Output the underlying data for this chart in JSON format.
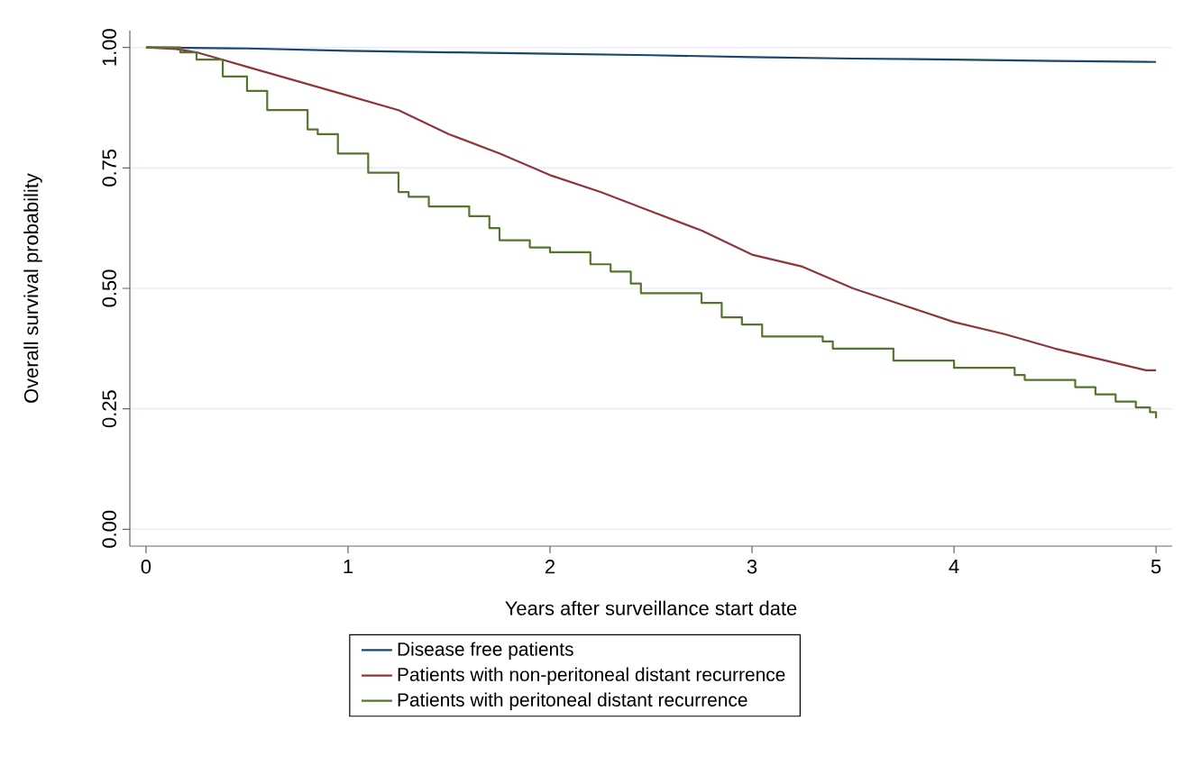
{
  "chart_data": {
    "type": "line",
    "xlabel": "Years after surveillance start date",
    "ylabel": "Overall survival probability",
    "xlim": [
      -0.08,
      5.08
    ],
    "ylim": [
      -0.035,
      1.035
    ],
    "xticks": [
      0,
      1,
      2,
      3,
      4,
      5
    ],
    "yticks": [
      {
        "value": 0,
        "label": "0.00"
      },
      {
        "value": 0.25,
        "label": "0.25"
      },
      {
        "value": 0.5,
        "label": "0.50"
      },
      {
        "value": 0.75,
        "label": "0.75"
      },
      {
        "value": 1,
        "label": "1.00"
      }
    ],
    "grid": "y",
    "legend": "bottom",
    "series": [
      {
        "name": "Disease free patients",
        "color": "#1a476f",
        "x": [
          0,
          0.5,
          1,
          1.5,
          2,
          2.5,
          3,
          3.5,
          4,
          4.5,
          5
        ],
        "values": [
          1.0,
          0.998,
          0.993,
          0.99,
          0.987,
          0.984,
          0.98,
          0.977,
          0.975,
          0.972,
          0.97
        ]
      },
      {
        "name": "Patients with non-peritoneal distant recurrence",
        "color": "#90353b",
        "x": [
          0,
          0.15,
          0.25,
          0.5,
          0.75,
          1.0,
          1.25,
          1.5,
          1.75,
          2.0,
          2.25,
          2.5,
          2.75,
          3.0,
          3.25,
          3.5,
          3.75,
          4.0,
          4.25,
          4.5,
          4.75,
          4.95,
          5.0
        ],
        "values": [
          1.0,
          0.997,
          0.99,
          0.96,
          0.93,
          0.9,
          0.87,
          0.82,
          0.78,
          0.735,
          0.7,
          0.66,
          0.62,
          0.57,
          0.545,
          0.5,
          0.465,
          0.43,
          0.405,
          0.375,
          0.35,
          0.33,
          0.33
        ]
      },
      {
        "name": "Patients with peritoneal distant recurrence",
        "color": "#55752f",
        "type": "step",
        "x": [
          0,
          0.17,
          0.25,
          0.38,
          0.5,
          0.6,
          0.8,
          0.85,
          0.95,
          1.1,
          1.25,
          1.3,
          1.4,
          1.6,
          1.7,
          1.75,
          1.9,
          2.0,
          2.2,
          2.3,
          2.4,
          2.45,
          2.75,
          2.85,
          2.95,
          3.05,
          3.35,
          3.4,
          3.7,
          4.0,
          4.3,
          4.35,
          4.6,
          4.7,
          4.8,
          4.9,
          4.97,
          5.0
        ],
        "values": [
          1.0,
          0.99,
          0.975,
          0.94,
          0.91,
          0.87,
          0.83,
          0.82,
          0.78,
          0.74,
          0.7,
          0.69,
          0.67,
          0.65,
          0.625,
          0.6,
          0.585,
          0.575,
          0.55,
          0.535,
          0.51,
          0.49,
          0.47,
          0.44,
          0.425,
          0.4,
          0.39,
          0.375,
          0.35,
          0.335,
          0.32,
          0.31,
          0.295,
          0.28,
          0.265,
          0.253,
          0.243,
          0.23
        ]
      }
    ]
  }
}
